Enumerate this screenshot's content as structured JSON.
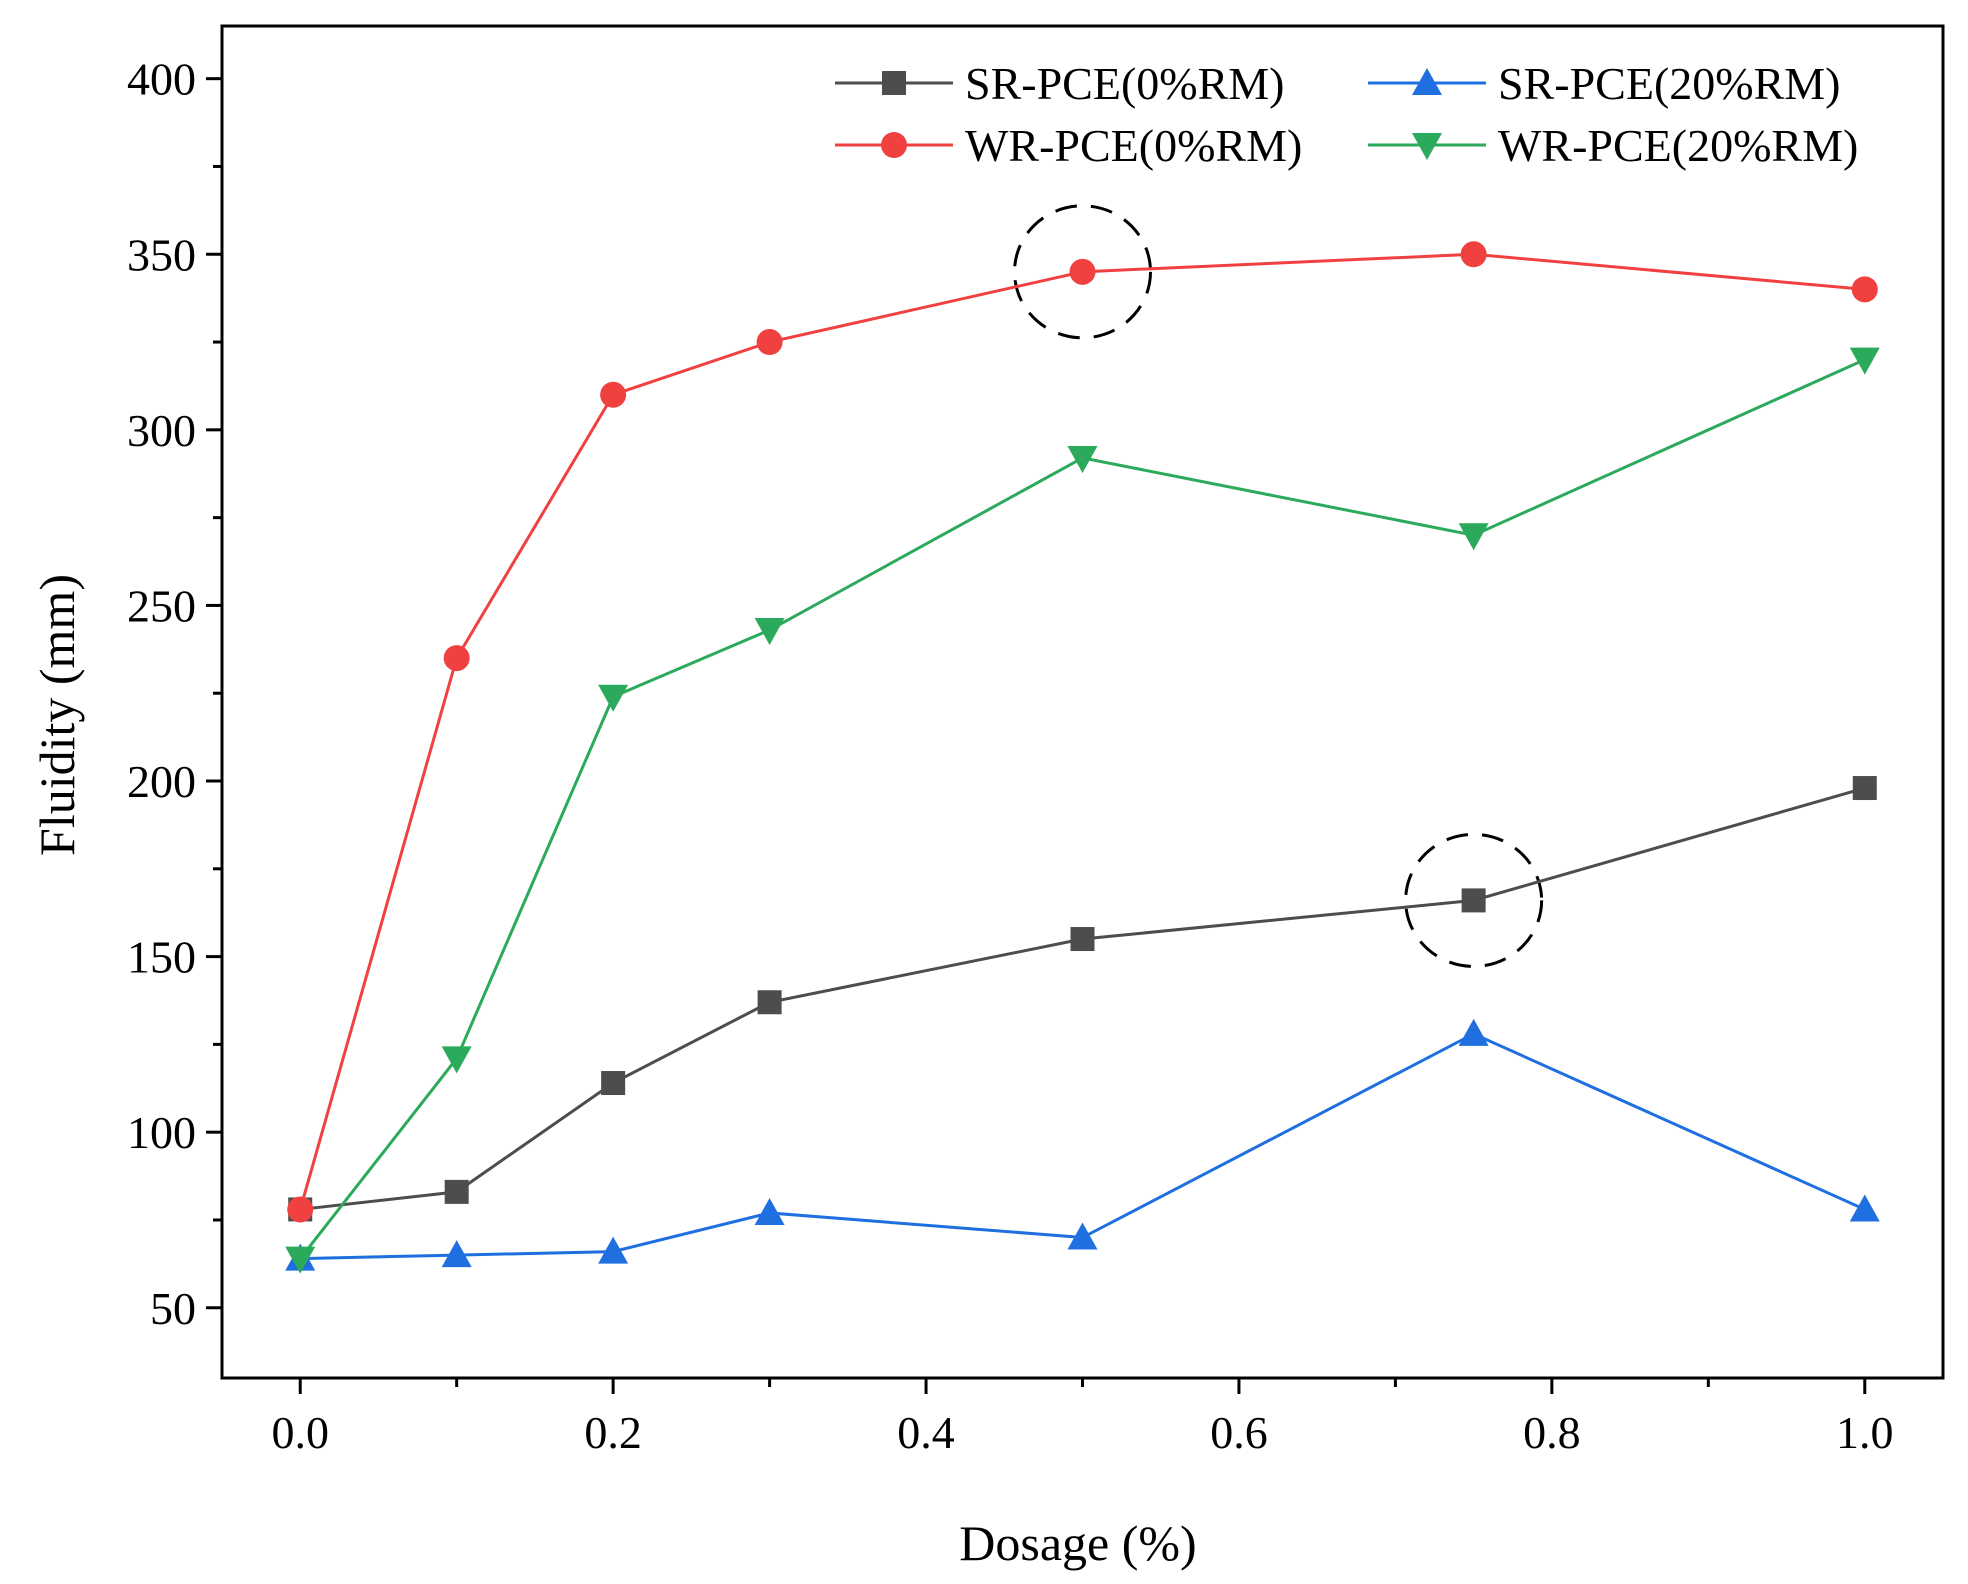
{
  "chart_data": {
    "type": "line",
    "title": "",
    "xlabel": "Dosage (%)",
    "ylabel": "Fluidity (mm)",
    "xlim": [
      -0.05,
      1.05
    ],
    "ylim": [
      30,
      415
    ],
    "xticks": [
      0.0,
      0.2,
      0.4,
      0.6,
      0.8,
      1.0
    ],
    "xtick_labels": [
      "0.0",
      "0.2",
      "0.4",
      "0.6",
      "0.8",
      "1.0"
    ],
    "x_minor_ticks": [
      0.1,
      0.3,
      0.5,
      0.7,
      0.9
    ],
    "yticks": [
      50,
      100,
      150,
      200,
      250,
      300,
      350,
      400
    ],
    "ytick_labels": [
      "50",
      "100",
      "150",
      "200",
      "250",
      "300",
      "350",
      "400"
    ],
    "y_minor_ticks": [
      75,
      125,
      175,
      225,
      275,
      325,
      375
    ],
    "grid": false,
    "legend_position": "top-right",
    "series": [
      {
        "name": "SR-PCE(0%RM)",
        "color": "#4d4d4d",
        "marker": "square",
        "x": [
          0.0,
          0.1,
          0.2,
          0.3,
          0.5,
          0.75,
          1.0
        ],
        "y": [
          78,
          83,
          114,
          137,
          155,
          166,
          198
        ]
      },
      {
        "name": "SR-PCE(20%RM)",
        "color": "#1f6fe0",
        "marker": "triangle-up",
        "x": [
          0.0,
          0.1,
          0.2,
          0.3,
          0.5,
          0.75,
          1.0
        ],
        "y": [
          64,
          65,
          66,
          77,
          70,
          128,
          78
        ]
      },
      {
        "name": "WR-PCE(0%RM)",
        "color": "#f04040",
        "marker": "circle",
        "x": [
          0.0,
          0.1,
          0.2,
          0.3,
          0.5,
          0.75,
          1.0
        ],
        "y": [
          78,
          235,
          310,
          325,
          345,
          350,
          340
        ]
      },
      {
        "name": "WR-PCE(20%RM)",
        "color": "#2aaa5a",
        "marker": "triangle-down",
        "x": [
          0.0,
          0.1,
          0.2,
          0.3,
          0.5,
          0.75,
          1.0
        ],
        "y": [
          64,
          121,
          224,
          243,
          292,
          270,
          320
        ]
      }
    ],
    "annotations": [
      {
        "type": "dashed-circle",
        "x": 0.5,
        "y": 345
      },
      {
        "type": "dashed-circle",
        "x": 0.75,
        "y": 166
      }
    ]
  }
}
